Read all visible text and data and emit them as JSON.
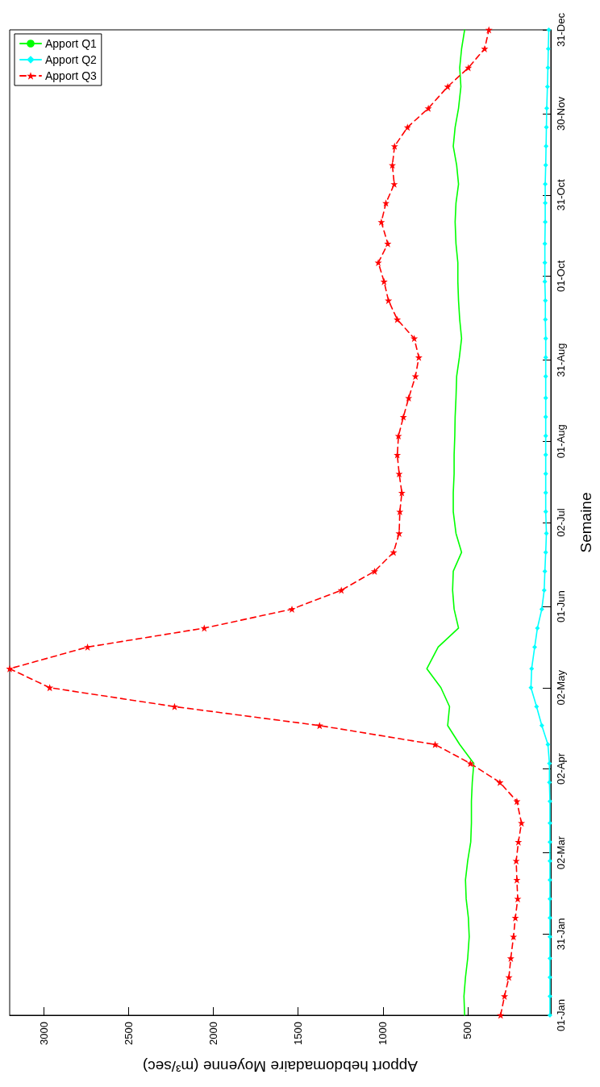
{
  "chart_data": {
    "type": "line",
    "orientation": "horizontal",
    "xlabel": "Apport hebdomadaire Moyenne (m³/sec)",
    "ylabel": "Semaine",
    "xlim": [
      3200,
      10
    ],
    "xticks": [
      500,
      1000,
      1500,
      2000,
      2500,
      3000
    ],
    "ylim": [
      "--01-01",
      "--12-31"
    ],
    "yticks": [
      {
        "value": "--01-01",
        "label": "01-Jan"
      },
      {
        "value": "--01-31",
        "label": "31-Jan"
      },
      {
        "value": "--03-02",
        "label": "02-Mar"
      },
      {
        "value": "--04-02",
        "label": "02-Apr"
      },
      {
        "value": "--05-02",
        "label": "02-May"
      },
      {
        "value": "--06-01",
        "label": "01-Jun"
      },
      {
        "value": "--07-02",
        "label": "02-Jul"
      },
      {
        "value": "--08-01",
        "label": "01-Aug"
      },
      {
        "value": "--08-31",
        "label": "31-Aug"
      },
      {
        "value": "--10-01",
        "label": "01-Oct"
      },
      {
        "value": "--10-31",
        "label": "31-Oct"
      },
      {
        "value": "--11-30",
        "label": "30-Nov"
      },
      {
        "value": "--12-31",
        "label": "31-Dec"
      }
    ],
    "x": [
      "--01-01",
      "--01-08",
      "--01-15",
      "--01-22",
      "--01-30",
      "--02-06",
      "--02-13",
      "--02-20",
      "--02-27",
      "--03-06",
      "--03-13",
      "--03-21",
      "--03-28",
      "--04-04",
      "--04-11",
      "--04-18",
      "--04-25",
      "--05-02",
      "--05-09",
      "--05-17",
      "--05-24",
      "--05-31",
      "--06-07",
      "--06-14",
      "--06-21",
      "--06-28",
      "--07-06",
      "--07-13",
      "--07-20",
      "--07-27",
      "--08-03",
      "--08-10",
      "--08-17",
      "--08-25",
      "--09-01",
      "--09-08",
      "--09-15",
      "--09-22",
      "--09-29",
      "--10-06",
      "--10-13",
      "--10-21",
      "--10-28",
      "--11-04",
      "--11-11",
      "--11-18",
      "--11-25",
      "--12-02",
      "--12-10",
      "--12-17",
      "--12-24",
      "--12-31"
    ],
    "grid": false,
    "legend": "top left",
    "series": [
      {
        "name": "Apport Q1",
        "color": "#00ff00",
        "marker": "none",
        "line_style": "solid",
        "values": [
          518,
          522,
          513,
          500,
          491,
          496,
          509,
          513,
          500,
          482,
          478,
          478,
          473,
          464,
          547,
          618,
          607,
          658,
          741,
          674,
          554,
          580,
          589,
          585,
          536,
          569,
          585,
          585,
          580,
          580,
          576,
          574,
          569,
          565,
          549,
          536,
          547,
          554,
          558,
          558,
          569,
          574,
          569,
          554,
          565,
          585,
          574,
          554,
          540,
          547,
          536,
          518
        ]
      },
      {
        "name": "Apport Q2",
        "color": "#00ffff",
        "marker": "diamond",
        "line_style": "solid",
        "values": [
          15,
          15,
          15,
          15,
          15,
          15,
          15,
          15,
          15,
          15,
          15,
          15,
          18,
          18,
          27,
          63,
          94,
          127,
          123,
          105,
          89,
          63,
          49,
          45,
          40,
          36,
          40,
          40,
          40,
          40,
          40,
          40,
          40,
          40,
          40,
          40,
          42,
          42,
          45,
          45,
          45,
          43,
          43,
          43,
          40,
          38,
          36,
          34,
          30,
          27,
          25,
          22
        ]
      },
      {
        "name": "Apport Q3",
        "color": "#ff0000",
        "marker": "star",
        "line_style": "dashed",
        "values": [
          306,
          283,
          257,
          246,
          230,
          219,
          205,
          210,
          214,
          201,
          183,
          210,
          310,
          484,
          692,
          1373,
          2228,
          2964,
          3200,
          2741,
          2053,
          1536,
          1245,
          1049,
          937,
          904,
          900,
          888,
          904,
          915,
          908,
          879,
          848,
          808,
          788,
          815,
          915,
          967,
          993,
          1027,
          971,
          1009,
          982,
          933,
          944,
          931,
          855,
          732,
          618,
          496,
          400,
          375
        ]
      }
    ]
  }
}
